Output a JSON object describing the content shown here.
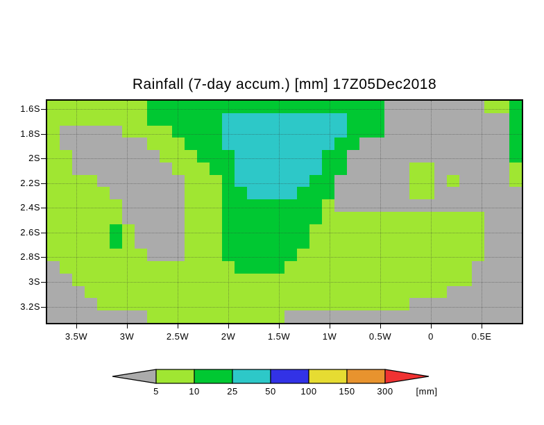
{
  "title": "Rainfall (7-day accum.) [mm] 17Z05Dec2018",
  "chart_data": {
    "type": "heatmap",
    "title": "Rainfall (7-day accum.) [mm] 17Z05Dec2018",
    "xlabel": "",
    "ylabel": "",
    "lat_tick_labels": [
      "1.6S",
      "1.8S",
      "2S",
      "2.2S",
      "2.4S",
      "2.6S",
      "2.8S",
      "3S",
      "3.2S"
    ],
    "lon_tick_labels": [
      "3.5W",
      "3W",
      "2.5W",
      "2W",
      "1.5W",
      "1W",
      "0.5W",
      "0",
      "0.5E"
    ],
    "value_scale_mm": [
      5,
      10,
      25,
      50,
      100,
      150,
      300
    ],
    "palette": {
      "G": "#ababab",
      "Y": "#a0e632",
      "N": "#00c832",
      "C": "#2dc8c8",
      "B": "#3232e6",
      "W": "#e6dc32",
      "O": "#e8932e",
      "R": "#f03232"
    },
    "palette_legend": {
      "G": "below 5 mm (gray)",
      "Y": "5-10 mm (yellow-green)",
      "N": "10-25 mm (green)",
      "C": "25-50 mm (cyan)",
      "B": "50-100 mm (blue)",
      "W": "100-150 mm (yellow)",
      "O": "150-300 mm (orange)",
      "R": "above 300 mm (red)"
    },
    "grid_cols": 38,
    "grid_rows": 18,
    "grid": [
      "YYYYYYYYNNNNNNNNNNNNNNNNNNNGGGGGGGGYYN",
      "YYYYYYYYNNNNNNCCCCCCCCCCNNNGGGGGGGGGGN",
      "YGGGGGYYYYNNNNCCCCCCCCCCNNNGGGGGGGGGGN",
      "YGGGGGGGYYYNNNCCCCCCCCCNNGGGGGGGGGGGGN",
      "YYGGGGGGGYYYNNNCCCCCCCNNGGGGGGGGGGGGGN",
      "YYGGGGGGGGYYYNNCCCCCCCNNGGGGGYYGGGGGGY",
      "YYYYGGGGGGGYYYNCCCCCCNNGGGGGGYYGYGGGGY",
      "YYYYYGGGGGGYYYNNCCCCNNNGGGGGGYYGGGGGGG",
      "YYYYYYGGGGGYYYNNNNNNNNYGGGGGGGGGGGGGGG",
      "YYYYYYGGGGGYYYNNNNNNNNYYYYYYYYYYYYYGGG",
      "YYYYYNYGGGGYYYNNNNNNNYYYYYYYYYYYYYYGGG",
      "YYYYYNYGGGGYYYNNNNNNNYYYYYYYYYYYYYYGGG",
      "YYYYYYYYGGGYYYNNNNNNYYYYYYYYYYYYYYYGGG",
      "GYYYYYYYYYYYYYYNNNNYYYYYYYYYYYYYYYGGGG",
      "GGYYYYYYYYYYYYYYYYYYYYYYYYYYYYYYYYGGGG",
      "GGGYYYYYYYYYYYYYYYYYYYYYYYYYYYYYGGGGGG",
      "GGGGYYYYYYYYYYYYYYYYYYYYYYYYYGGGGGGGGG",
      "GGGGGGGGYYYYYYYYYYYGGGGGGGGGGGGGGGGGGG"
    ],
    "legend": {
      "box_colors": [
        "Y",
        "N",
        "C",
        "B",
        "W",
        "O"
      ],
      "left_arrow_color": "G",
      "right_arrow_color": "R",
      "tick_labels": [
        "5",
        "10",
        "25",
        "50",
        "100",
        "150",
        "300"
      ],
      "unit_label": "[mm]"
    }
  }
}
